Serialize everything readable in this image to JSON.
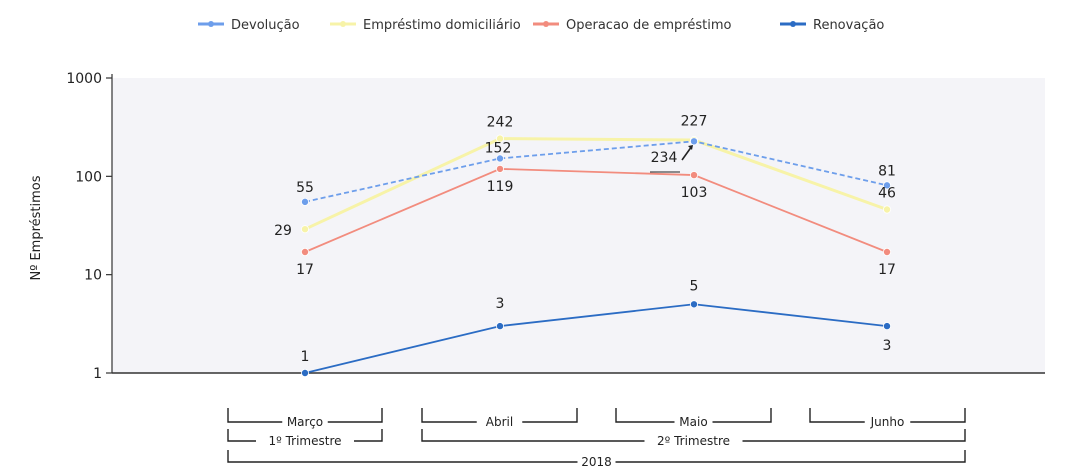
{
  "chart_data": {
    "type": "line",
    "ylabel": "Nº Empréstimos",
    "yscale": "log",
    "ylim": [
      1,
      1000
    ],
    "yticks": [
      1,
      10,
      100,
      1000
    ],
    "ytick_labels": [
      "1",
      "10",
      "100",
      "1000"
    ],
    "grid": false,
    "legend_position": "top",
    "categories": [
      "Março",
      "Abril",
      "Maio",
      "Junho"
    ],
    "category_groups": [
      {
        "label": "1º Trimestre",
        "span": [
          0,
          0
        ]
      },
      {
        "label": "2º Trimestre",
        "span": [
          1,
          3
        ]
      }
    ],
    "year_group": {
      "label": "2018",
      "span": [
        0,
        3
      ]
    },
    "series": [
      {
        "name": "Devolução",
        "color": "#6d9eeb",
        "dashed": true,
        "values": [
          55,
          152,
          227,
          81
        ],
        "labels": [
          "55",
          "152",
          "227",
          "81"
        ]
      },
      {
        "name": "Empréstimo domiciliário",
        "color": "#f7f3a8",
        "dashed": false,
        "values": [
          29,
          242,
          234,
          46
        ],
        "labels": [
          "29",
          "242",
          "234",
          "46"
        ]
      },
      {
        "name": "Operacao de empréstimo",
        "color": "#f28c7e",
        "dashed": false,
        "values": [
          17,
          119,
          103,
          17
        ],
        "labels": [
          "17",
          "119",
          "103",
          "17"
        ]
      },
      {
        "name": "Renovação",
        "color": "#2b6cc4",
        "dashed": false,
        "values": [
          1,
          3,
          5,
          3
        ],
        "labels": [
          "1",
          "3",
          "5",
          "3"
        ]
      }
    ]
  }
}
